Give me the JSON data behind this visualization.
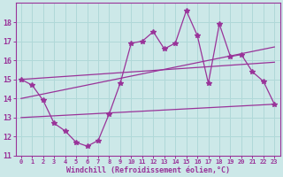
{
  "xlabel": "Windchill (Refroidissement éolien,°C)",
  "bg_color": "#cce8e8",
  "grid_color": "#b0d8d8",
  "line_color": "#993399",
  "spine_color": "#993399",
  "tick_color": "#993399",
  "xlim": [
    -0.5,
    23.5
  ],
  "ylim": [
    11,
    19
  ],
  "yticks": [
    11,
    12,
    13,
    14,
    15,
    16,
    17,
    18
  ],
  "xticks": [
    0,
    1,
    2,
    3,
    4,
    5,
    6,
    7,
    8,
    9,
    10,
    11,
    12,
    13,
    14,
    15,
    16,
    17,
    18,
    19,
    20,
    21,
    22,
    23
  ],
  "series1": [
    15.0,
    14.7,
    13.9,
    12.7,
    12.3,
    11.7,
    11.5,
    11.8,
    13.2,
    14.8,
    16.9,
    17.0,
    17.5,
    16.6,
    16.9,
    18.6,
    17.3,
    14.8,
    17.9,
    16.2,
    16.3,
    15.4,
    14.9,
    13.7
  ],
  "series2_x": [
    0,
    23
  ],
  "series2_y": [
    14.0,
    16.7
  ],
  "series3_x": [
    0,
    23
  ],
  "series3_y": [
    13.0,
    13.7
  ],
  "series4_x": [
    0,
    23
  ],
  "series4_y": [
    15.0,
    15.9
  ]
}
